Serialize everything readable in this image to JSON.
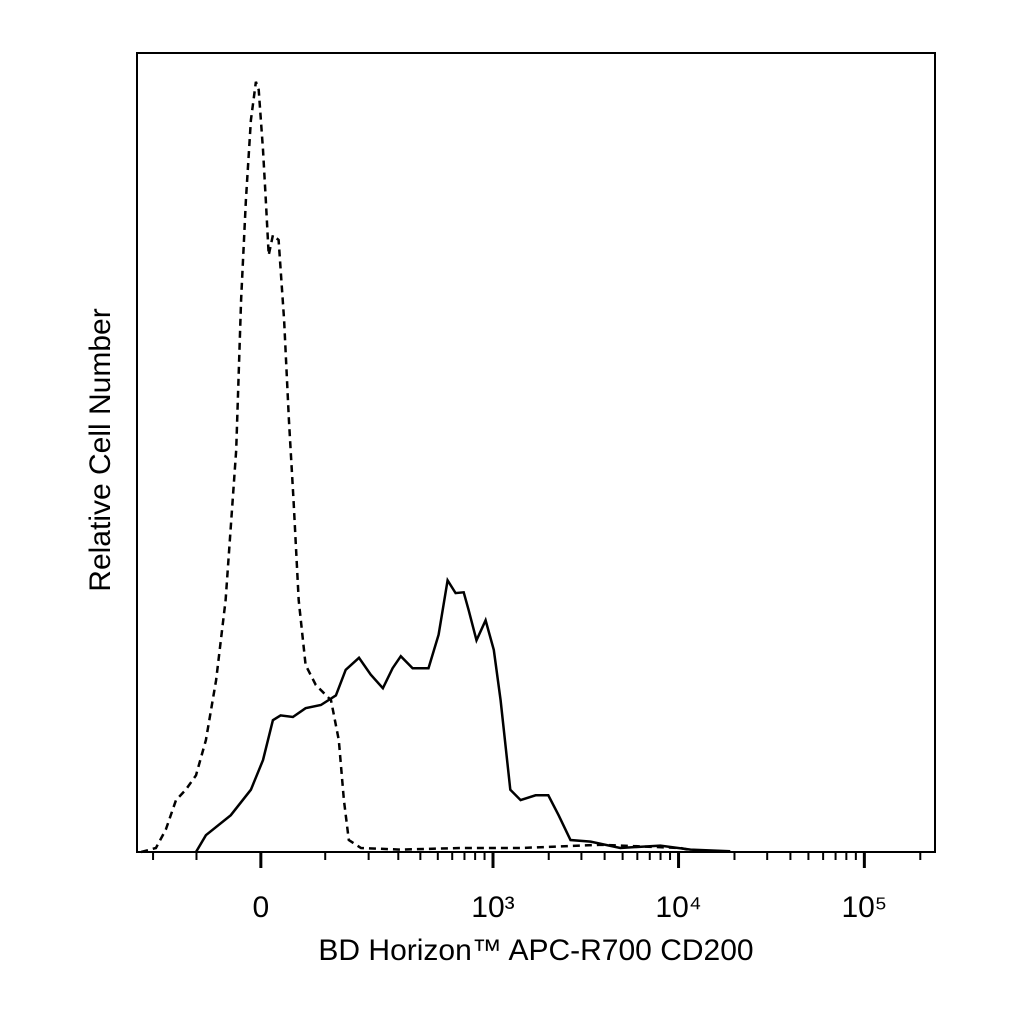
{
  "chart_data": {
    "type": "line",
    "xlabel": "BD Horizon™ APC-R700 CD200",
    "ylabel": "Relative Cell Number",
    "xscale": "biexponential",
    "xlim": [
      -250,
      240000
    ],
    "ylim": [
      0,
      100
    ],
    "xticks": [
      0,
      {
        "value": 1000,
        "label": "10³"
      },
      {
        "value": 10000,
        "label": "10⁴"
      },
      {
        "value": 100000,
        "label": "10⁵"
      }
    ],
    "xminorticks": [
      -200,
      -100,
      100,
      200,
      300,
      400,
      500,
      600,
      700,
      800,
      900,
      2000,
      3000,
      4000,
      5000,
      6000,
      7000,
      8000,
      9000,
      20000,
      30000,
      40000,
      50000,
      60000,
      70000,
      80000,
      90000,
      200000
    ],
    "series": [
      {
        "style": "dashed",
        "color": "#000000",
        "x": [
          -236,
          -192,
          -166,
          -142,
          -121,
          -101,
          -83,
          -66,
          -51,
          -35,
          -28,
          -21,
          -14,
          -7,
          -3,
          3,
          7,
          11,
          17,
          25,
          33,
          40,
          47,
          55,
          66,
          83,
          111,
          127,
          138,
          149,
          179,
          310,
          667,
          1410,
          3800,
          10200,
          13100
        ],
        "values": [
          0,
          0.5,
          2.8,
          6.5,
          7.8,
          9.6,
          14,
          21.5,
          31.5,
          50.3,
          69.1,
          81.6,
          91.6,
          96.4,
          95.4,
          87.9,
          81.6,
          74.7,
          77.2,
          76.6,
          66.6,
          54.1,
          44.1,
          31.5,
          23.4,
          20.9,
          19,
          14,
          6.5,
          1.5,
          0.5,
          0.3,
          0.5,
          0.5,
          0.9,
          0.5,
          0
        ]
      },
      {
        "style": "solid",
        "color": "#000000",
        "x": [
          -101,
          -83,
          -43,
          -14,
          3,
          17,
          28,
          46,
          66,
          92,
          121,
          142,
          174,
          206,
          244,
          278,
          310,
          362,
          444,
          505,
          566,
          626,
          693,
          737,
          814,
          912,
          1010,
          1100,
          1240,
          1410,
          1700,
          1990,
          2260,
          2620,
          3360,
          4860,
          7980,
          11600,
          19000
        ],
        "values": [
          0,
          2.1,
          4.6,
          7.8,
          11.5,
          16.5,
          17.1,
          16.9,
          18,
          18.4,
          19.6,
          22.8,
          24.3,
          22.2,
          20.5,
          23,
          24.5,
          23,
          23,
          27.2,
          34,
          32.4,
          32.5,
          30.3,
          26.5,
          29,
          25.3,
          19,
          7.8,
          6.5,
          7.1,
          7.1,
          4.6,
          1.5,
          1.3,
          0.5,
          0.8,
          0.3,
          0.1
        ]
      }
    ]
  }
}
